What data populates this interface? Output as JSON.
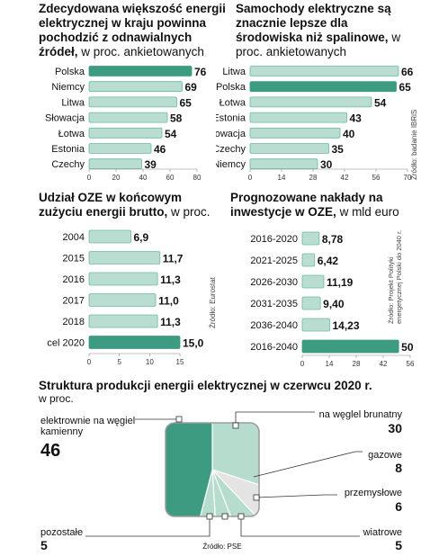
{
  "charts": {
    "c1": {
      "title": "Zdecydowana większość energii elektrycznej w kraju powinna pochodzić z odnawialnych źródeł,",
      "subtitle": "w proc. ankietowanych"
    },
    "c2": {
      "title": "Samochody elektryczne są znacznie lepsze dla środowiska niż spalinowe,",
      "subtitle": "w proc. ankietowanych",
      "source": "Źródło: badanie IBRiS"
    },
    "c3": {
      "title": "Udział OZE w końcowym zużyciu energii brutto,",
      "subtitle": "w proc.",
      "source": "Źródło: Eurostat"
    },
    "c4": {
      "title": "Prognozowane nakłady na inwestycje w OZE,",
      "subtitle": "w mld euro",
      "source": "Źródło: Projekt Polityki energetycznej Polski do 2040 r."
    },
    "c5": {
      "title": "Struktura produkcji energii elektrycznej w czerwcu 2020 r.",
      "subtitle": "w proc.",
      "source": "Źródło: PSE"
    }
  },
  "colors": {
    "highlight": "#3d9b82",
    "bar": "#b9ddd0",
    "bar_stroke": "#6fb9a0",
    "pie_main": "#3d9b82",
    "pie_light": "#b6dccd",
    "pie_grey": "#e4e4e4",
    "frame": "#9b9b9b"
  },
  "chart_data": [
    {
      "type": "bar",
      "orientation": "horizontal",
      "categories": [
        "Polska",
        "Niemcy",
        "Litwa",
        "Słowacja",
        "Łotwa",
        "Estonia",
        "Czechy"
      ],
      "values": [
        76,
        69,
        65,
        58,
        54,
        46,
        39
      ],
      "highlight": "Polska",
      "ticks": [
        0,
        20,
        40,
        60,
        80
      ],
      "xlim": [
        0,
        80
      ]
    },
    {
      "type": "bar",
      "orientation": "horizontal",
      "categories": [
        "Litwa",
        "Polska",
        "Łotwa",
        "Estonia",
        "Słowacja",
        "Czechy",
        "Niemcy"
      ],
      "values": [
        66,
        65,
        54,
        43,
        40,
        35,
        30
      ],
      "highlight": "Polska",
      "ticks": [
        0,
        14,
        28,
        42,
        56,
        70
      ],
      "xlim": [
        0,
        70
      ]
    },
    {
      "type": "bar",
      "orientation": "horizontal",
      "categories": [
        "2004",
        "2015",
        "2016",
        "2017",
        "2018",
        "cel 2020"
      ],
      "values": [
        6.9,
        11.7,
        11.3,
        11.0,
        11.3,
        15.0
      ],
      "labels": [
        "6,9",
        "11,7",
        "11,3",
        "11,0",
        "11,3",
        "15,0"
      ],
      "highlight": "cel 2020",
      "ticks": [
        0,
        5,
        10,
        15
      ],
      "xlim": [
        0,
        15
      ]
    },
    {
      "type": "bar",
      "orientation": "horizontal",
      "categories": [
        "2016-2020",
        "2021-2025",
        "2026-2030",
        "2031-2035",
        "2036-2040",
        "2016-2040"
      ],
      "values": [
        8.78,
        6.42,
        11.19,
        9.4,
        14.23,
        50.02
      ],
      "labels": [
        "8,78",
        "6,42",
        "11,19",
        "9,40",
        "14,23",
        "50,02"
      ],
      "highlight": "2016-2040",
      "ticks": [
        0,
        14,
        28,
        42,
        56
      ],
      "xlim": [
        0,
        56
      ]
    },
    {
      "type": "pie",
      "slices": [
        {
          "label": "elektrownie na węgiel kamienny",
          "value": 46,
          "color": "#3d9b82"
        },
        {
          "label": "na węglel brunatny",
          "value": 30,
          "color": "#b6dccd"
        },
        {
          "label": "gazowe",
          "value": 8,
          "color": "#e4e4e4"
        },
        {
          "label": "przemysłowe",
          "value": 6,
          "color": "#b6dccd"
        },
        {
          "label": "wiatrowe",
          "value": 5,
          "color": "#b6dccd"
        },
        {
          "label": "pozostałe",
          "value": 5,
          "color": "#b6dccd"
        }
      ]
    }
  ]
}
